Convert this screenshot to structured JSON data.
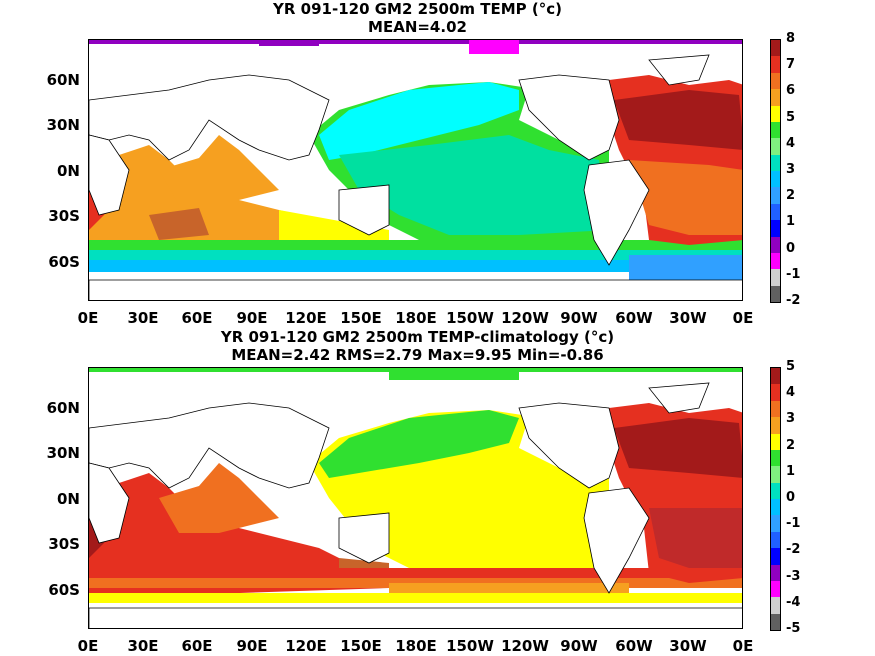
{
  "panels": [
    {
      "title_line1": "YR 091-120 GM2 2500m TEMP (°c)",
      "title_line2": "MEAN=4.02",
      "colorbar": {
        "labels": [
          "8",
          "7",
          "6",
          "5",
          "4",
          "3",
          "2",
          "1",
          "0",
          "-1",
          "-2"
        ],
        "colors": [
          "#a31a1a",
          "#e53020",
          "#f07020",
          "#f6a020",
          "#ffff00",
          "#30e030",
          "#80f080",
          "#00e0c0",
          "#00c0ff",
          "#30a0ff",
          "#2060ff",
          "#0000ff",
          "#9000c0",
          "#ff00ff",
          "#d0d0d0",
          "#606060"
        ]
      }
    },
    {
      "title_line1": "YR 091-120 GM2 2500m TEMP-climatology (°c)",
      "title_line2": "MEAN=2.42   RMS=2.79   Max=9.95   Min=-0.86",
      "colorbar": {
        "labels": [
          "5",
          "4",
          "3",
          "2",
          "1",
          "0",
          "-1",
          "-2",
          "-3",
          "-4",
          "-5"
        ],
        "colors": [
          "#a31a1a",
          "#e53020",
          "#f07020",
          "#f6a020",
          "#ffff00",
          "#30e030",
          "#80f080",
          "#00e0c0",
          "#00c0ff",
          "#30a0ff",
          "#2060ff",
          "#0000ff",
          "#9000c0",
          "#ff00ff",
          "#d0d0d0",
          "#606060"
        ]
      }
    }
  ],
  "lat_labels": [
    "60N",
    "30N",
    "0N",
    "30S",
    "60S"
  ],
  "lon_labels": [
    "0E",
    "30E",
    "60E",
    "90E",
    "120E",
    "150E",
    "180E",
    "150W",
    "120W",
    "90W",
    "60W",
    "30W",
    "0E"
  ]
}
